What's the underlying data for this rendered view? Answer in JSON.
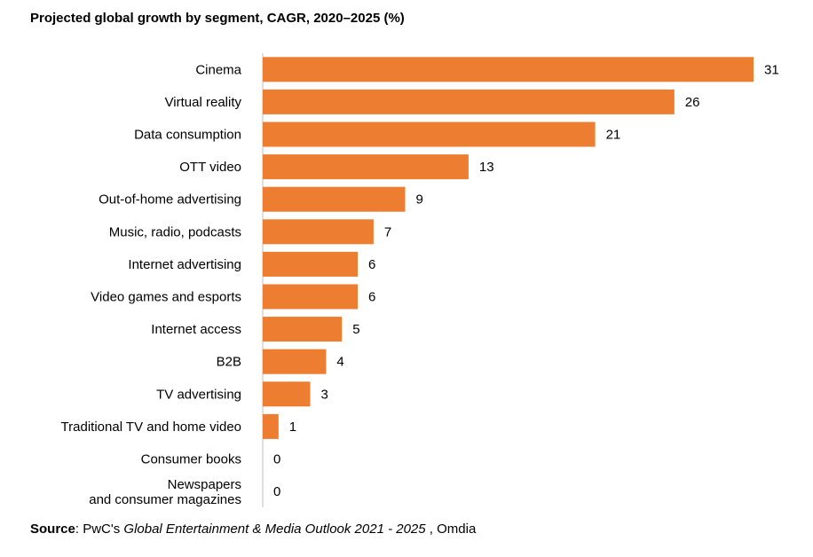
{
  "chart_data": {
    "type": "bar",
    "orientation": "horizontal",
    "title": "Projected global growth by segment, CAGR, 2020–2025 (%)",
    "categories": [
      "Cinema",
      "Virtual reality",
      "Data consumption",
      "OTT video",
      "Out-of-home advertising",
      "Music, radio, podcasts",
      "Internet advertising",
      "Video games and esports",
      "Internet access",
      "B2B",
      "TV advertising",
      "Traditional TV and home video",
      "Consumer books",
      "Newspapers and consumer magazines"
    ],
    "values": [
      31,
      26,
      21,
      13,
      9,
      7,
      6,
      6,
      5,
      4,
      3,
      1,
      0,
      0
    ],
    "data_labels": [
      "31",
      "26",
      "21",
      "13",
      "9",
      "7",
      "6",
      "6",
      "5",
      "4",
      "3",
      "1",
      "0",
      "0"
    ],
    "xlim": [
      0,
      31
    ],
    "bar_color": "#ED7D31",
    "grid": false,
    "legend": "none"
  },
  "source": {
    "label": "Source",
    "prefix": ": PwC's ",
    "publication": "Global Entertainment & Media Outlook 2021 - 2025",
    "suffix": " , Omdia"
  }
}
